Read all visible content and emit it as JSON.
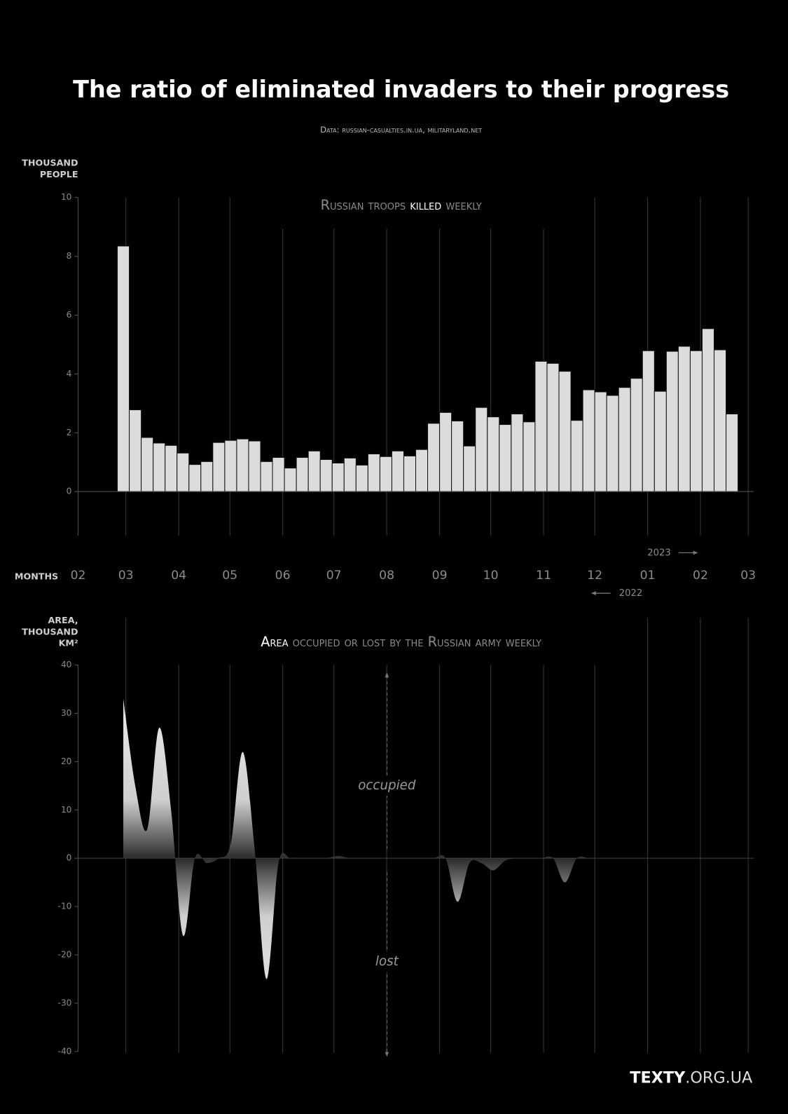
{
  "header": {
    "title": "The ratio of eliminated invaders to their progress",
    "source": "Data: russian-casualties.in.ua, militaryland.net"
  },
  "months": {
    "label": "MONTHS",
    "year_labels": [
      "2023",
      "2022"
    ]
  },
  "footer": {
    "logo_bold": "TEXTY",
    "logo_rest": ".ORG.UA"
  },
  "chart_data": [
    {
      "type": "bar",
      "subtitle": [
        "Russian troops",
        "killed",
        "weekly"
      ],
      "y_label": [
        "THOUSAND",
        "PEOPLE"
      ],
      "color": "#dcdcdc",
      "xlim": [
        0,
        393
      ],
      "xticks": [
        {
          "value": 0,
          "label": "02"
        },
        {
          "value": 28,
          "label": "03"
        },
        {
          "value": 59,
          "label": "04"
        },
        {
          "value": 89,
          "label": "05"
        },
        {
          "value": 120,
          "label": "06"
        },
        {
          "value": 150,
          "label": "07"
        },
        {
          "value": 181,
          "label": "08"
        },
        {
          "value": 212,
          "label": "09"
        },
        {
          "value": 242,
          "label": "10"
        },
        {
          "value": 273,
          "label": "11"
        },
        {
          "value": 303,
          "label": "12"
        },
        {
          "value": 334,
          "label": "01"
        },
        {
          "value": 365,
          "label": "02"
        },
        {
          "value": 393,
          "label": "03"
        }
      ],
      "ylim": [
        -1.5,
        10
      ],
      "yticks": [
        0,
        2,
        4,
        6,
        8,
        10
      ],
      "grid": true,
      "x": [
        26.5,
        33.5,
        40.5,
        47.5,
        54.5,
        61.5,
        68.5,
        75.5,
        82.5,
        89.5,
        96.5,
        103.5,
        110.5,
        117.5,
        124.5,
        131.5,
        138.5,
        145.5,
        152.5,
        159.5,
        166.5,
        173.5,
        180.5,
        187.5,
        194.5,
        201.5,
        208.5,
        215.5,
        222.5,
        229.5,
        236.5,
        243.5,
        250.5,
        257.5,
        264.5,
        271.5,
        278.5,
        285.5,
        292.5,
        299.5,
        306.5,
        313.5,
        320.5,
        327.5,
        334.5,
        341.5,
        348.5,
        355.5,
        362.5,
        369.5,
        376.5,
        383.5
      ],
      "values": [
        8.35,
        2.78,
        1.84,
        1.65,
        1.57,
        1.31,
        0.92,
        1.02,
        1.67,
        1.74,
        1.79,
        1.72,
        1.02,
        1.16,
        0.8,
        1.16,
        1.38,
        1.09,
        0.97,
        1.14,
        0.9,
        1.28,
        1.19,
        1.38,
        1.21,
        1.43,
        2.32,
        2.69,
        2.4,
        1.55,
        2.86,
        2.54,
        2.28,
        2.64,
        2.37,
        4.43,
        4.36,
        4.09,
        2.42,
        3.46,
        3.39,
        3.27,
        3.54,
        3.85,
        4.79,
        3.41,
        4.77,
        4.94,
        4.79,
        5.54,
        4.82,
        2.64
      ]
    },
    {
      "type": "area",
      "subtitle": [
        "Area",
        "occupied or lost by the Russian army weekly"
      ],
      "y_label": [
        "AREA,",
        "THOUSAND",
        "KM²"
      ],
      "annotations": [
        "occupied",
        "lost"
      ],
      "color": "#e6e6e6",
      "ylim": [
        -40,
        40
      ],
      "yticks": [
        40,
        30,
        20,
        10,
        0,
        -10,
        -20,
        -30,
        -40
      ],
      "grid": true,
      "x": [
        26.5,
        33.5,
        40.5,
        47.5,
        54.5,
        61.5,
        68.5,
        75.5,
        82.5,
        89.5,
        96.5,
        103.5,
        110.5,
        117.5,
        124.5,
        131.5,
        138.5,
        145.5,
        152.5,
        159.5,
        166.5,
        173.5,
        180.5,
        187.5,
        194.5,
        201.5,
        208.5,
        215.5,
        222.5,
        229.5,
        236.5,
        243.5,
        250.5,
        257.5,
        264.5,
        271.5,
        278.5,
        285.5,
        292.5,
        299.5,
        306.5,
        313.5,
        320.5,
        327.5,
        334.5,
        341.5,
        348.5,
        355.5,
        362.5,
        369.5,
        376.5,
        383.5
      ],
      "values": [
        33,
        15,
        6,
        27,
        10,
        -16,
        0,
        -1,
        0,
        3,
        22,
        2,
        -25,
        -1,
        0,
        0,
        0,
        0,
        0.5,
        0,
        0,
        0,
        0,
        0,
        0,
        0,
        0,
        0,
        -9,
        -1,
        -1,
        -2.5,
        -0.5,
        0,
        0,
        0,
        0,
        -5,
        0,
        0,
        0,
        0,
        0,
        0,
        0,
        0,
        0,
        0,
        0,
        0,
        0,
        0
      ]
    }
  ]
}
